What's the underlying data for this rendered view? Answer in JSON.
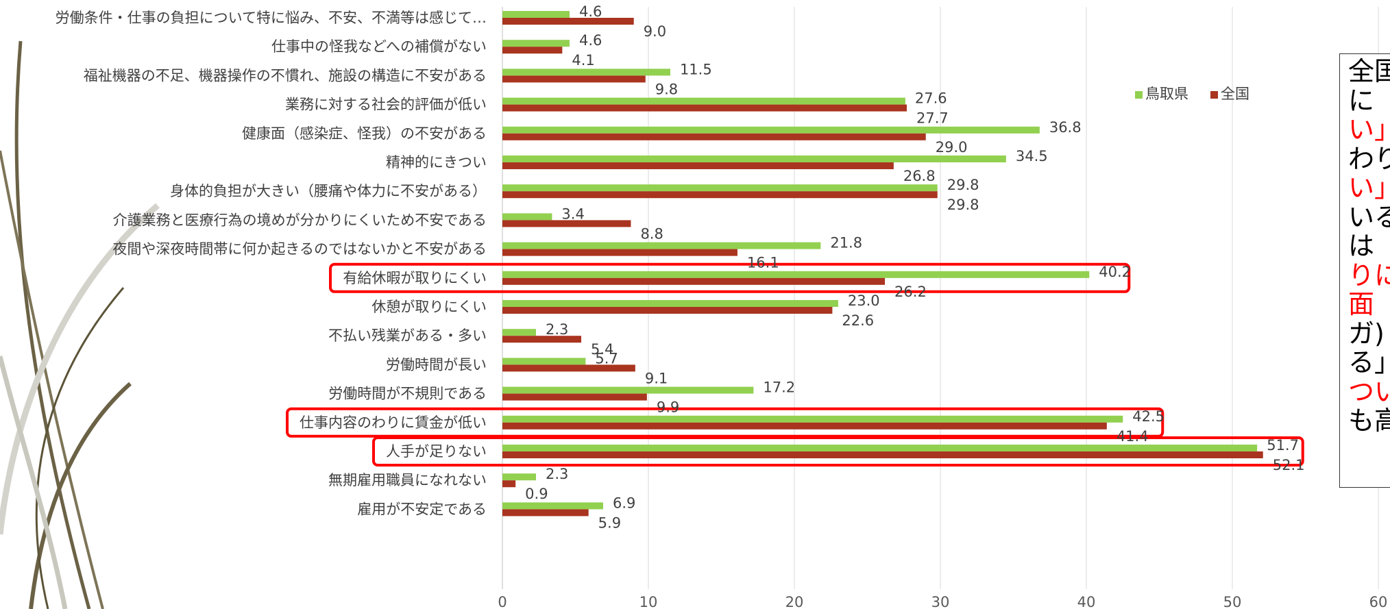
{
  "chart_data": {
    "type": "bar",
    "orientation": "horizontal",
    "categories": [
      "労働条件・仕事の負担について特に悩み、不安、不満等は感じて…",
      "仕事中の怪我などへの補償がない",
      "福祉機器の不足、機器操作の不慣れ、施設の構造に不安がある",
      "業務に対する社会的評価が低い",
      "健康面（感染症、怪我）の不安がある",
      "精神的にきつい",
      "身体的負担が大きい（腰痛や体力に不安がある）",
      "介護業務と医療行為の境めが分かりにくいため不安である",
      "夜間や深夜時間帯に何か起きるのではないかと不安がある",
      "有給休暇が取りにくい",
      "休憩が取りにくい",
      "不払い残業がある・多い",
      "労働時間が長い",
      "労働時間が不規則である",
      "仕事内容のわりに賃金が低い",
      "人手が足りない",
      "無期雇用職員になれない",
      "雇用が不安定である"
    ],
    "series": [
      {
        "name": "鳥取県",
        "color": "#92d050",
        "values": [
          4.6,
          4.6,
          11.5,
          27.6,
          36.8,
          34.5,
          29.8,
          3.4,
          21.8,
          40.2,
          23.0,
          2.3,
          5.7,
          17.2,
          42.5,
          51.7,
          2.3,
          6.9
        ]
      },
      {
        "name": "全国",
        "color": "#a9341f",
        "values": [
          9.0,
          4.1,
          9.8,
          27.7,
          29.0,
          26.8,
          29.8,
          8.8,
          16.1,
          26.2,
          22.6,
          5.4,
          9.1,
          9.9,
          41.4,
          52.1,
          0.9,
          5.9
        ]
      }
    ],
    "xlim": [
      0,
      60
    ],
    "xticks": [
      "0",
      "10",
      "20",
      "30",
      "40",
      "50",
      "60"
    ],
    "grid": true,
    "legend_position": "top-right",
    "highlighted_categories": [
      "有給休暇が取りにくい",
      "仕事内容のわりに賃金が低い",
      "人手が足りない"
    ],
    "highlight_color": "#ff0000"
  },
  "note": {
    "lines": [
      {
        "text": "全国",
        "red": false
      },
      {
        "text": "に",
        "red": false
      },
      {
        "text": "い」",
        "red": true
      },
      {
        "text": "わり",
        "red": false
      },
      {
        "text": "い」",
        "red": true
      },
      {
        "text": "いる",
        "red": false
      },
      {
        "text": "は",
        "red": false
      },
      {
        "text": "りに",
        "red": true
      },
      {
        "text": "面",
        "red": true
      },
      {
        "text": "ガ)",
        "red": false
      },
      {
        "text": "る」",
        "red": false
      },
      {
        "text": "つい",
        "red": true
      },
      {
        "text": "も高",
        "red": false
      }
    ]
  }
}
